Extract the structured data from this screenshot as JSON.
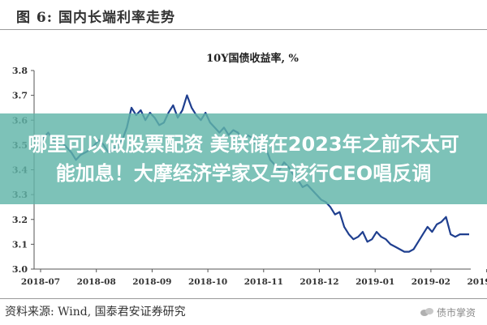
{
  "figure": {
    "title": "图 6:  国内长端利率走势"
  },
  "chart_data": {
    "type": "line",
    "title": "10Y国债收益率,  %",
    "xlabel": "",
    "ylabel": "",
    "ylim": [
      3.0,
      3.8
    ],
    "yticks": [
      "3.0",
      "3.1",
      "3.2",
      "3.3",
      "3.4",
      "3.5",
      "3.6",
      "3.7",
      "3.8"
    ],
    "xticks": [
      "2018-07",
      "2018-08",
      "2018-09",
      "2018-10",
      "2018-11",
      "2018-12",
      "2019-01",
      "2019-02",
      "2019-03"
    ],
    "grid": false,
    "line_color": "#1f3f8f",
    "series": [
      {
        "values": [
          3.49,
          3.53,
          3.55,
          3.52,
          3.5,
          3.51,
          3.49,
          3.47,
          3.44,
          3.46,
          3.47,
          3.48,
          3.5,
          3.52,
          3.5,
          3.47,
          3.48,
          3.5,
          3.52,
          3.57,
          3.65,
          3.62,
          3.64,
          3.6,
          3.63,
          3.61,
          3.58,
          3.59,
          3.63,
          3.66,
          3.61,
          3.64,
          3.7,
          3.65,
          3.62,
          3.6,
          3.63,
          3.59,
          3.57,
          3.55,
          3.57,
          3.54,
          3.56,
          3.55,
          3.52,
          3.54,
          3.53,
          3.5,
          3.47,
          3.49,
          3.44,
          3.42,
          3.4,
          3.43,
          3.41,
          3.38,
          3.36,
          3.33,
          3.34,
          3.32,
          3.3,
          3.28,
          3.27,
          3.25,
          3.22,
          3.23,
          3.17,
          3.14,
          3.12,
          3.13,
          3.15,
          3.11,
          3.12,
          3.15,
          3.13,
          3.12,
          3.1,
          3.09,
          3.08,
          3.07,
          3.07,
          3.08,
          3.11,
          3.14,
          3.17,
          3.15,
          3.18,
          3.19,
          3.21,
          3.14,
          3.13,
          3.14,
          3.14,
          3.14
        ]
      }
    ]
  },
  "banner": {
    "text": "哪里可以做股票配资 美联储在2023年之前不太可能加息！大摩经济学家又与该行CEO唱反调"
  },
  "footer": {
    "source": "资料来源:  Wind,  国泰君安证券研究",
    "watermark": "债市掌资",
    "watermark_icon": "wechat-icon"
  }
}
